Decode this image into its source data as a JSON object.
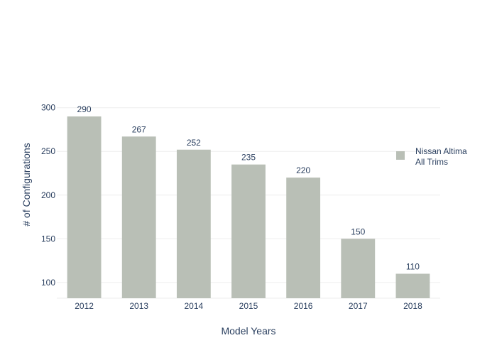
{
  "chart_data": {
    "type": "bar",
    "categories": [
      "2012",
      "2013",
      "2014",
      "2015",
      "2016",
      "2017",
      "2018"
    ],
    "series": [
      {
        "name": "Nissan Altima All Trims",
        "legend_lines": [
          "Nissan Altima",
          "All Trims"
        ],
        "values": [
          290,
          267,
          252,
          235,
          220,
          150,
          110
        ],
        "color": "#b9bfb6"
      }
    ],
    "data_labels": [
      "290",
      "267",
      "252",
      "235",
      "220",
      "150",
      "110"
    ],
    "xlabel": "Model Years",
    "ylabel": "# of Configurations",
    "ylim": [
      82,
      303
    ],
    "yticks": [
      100,
      150,
      200,
      250,
      300
    ],
    "grid": true,
    "legend_position": "right"
  },
  "colors": {
    "text": "#2a3f5f",
    "grid": "#eeeeee",
    "bar": "#b9bfb6"
  }
}
